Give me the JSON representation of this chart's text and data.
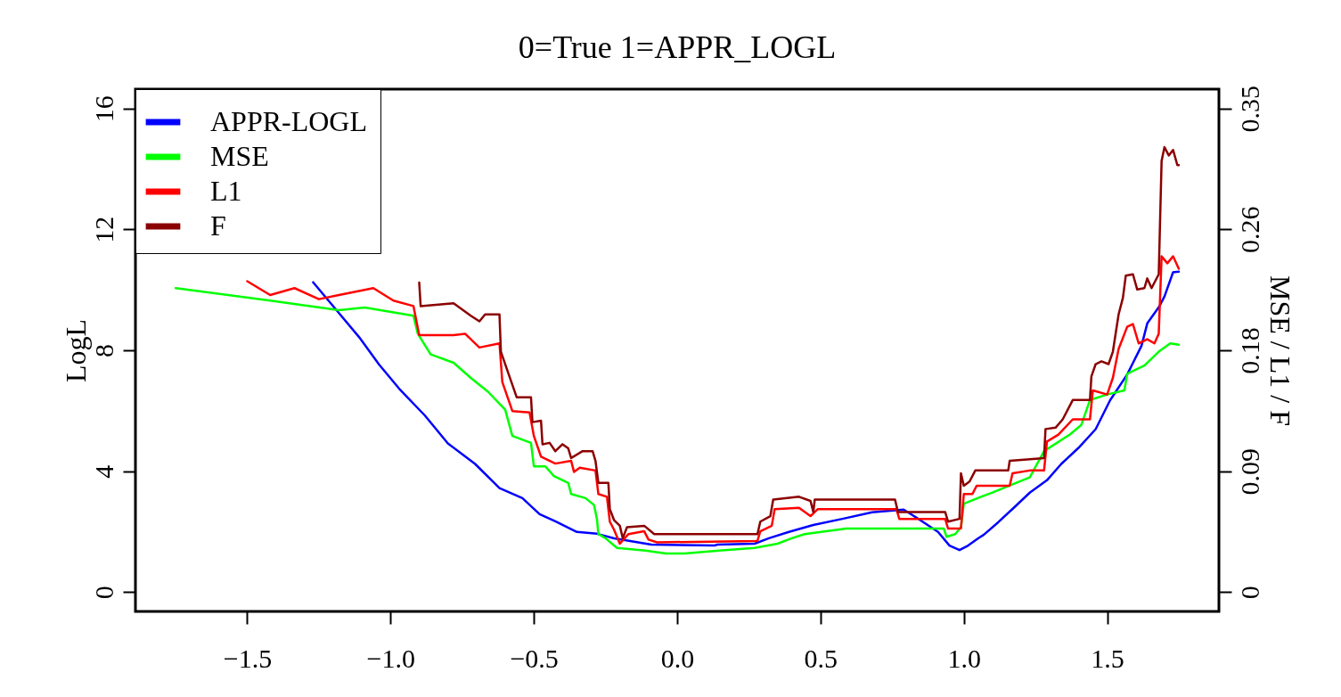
{
  "chart_data": {
    "type": "line",
    "title": "0=True   1=APPR_LOGL",
    "ylabel": "LogL",
    "y2label": "MSE / L1 / F",
    "xlim": [
      -1.89,
      1.89
    ],
    "ylim": [
      -0.64,
      16.64
    ],
    "y2lim": [
      -0.014,
      0.364
    ],
    "xticks": [
      {
        "value": -1.5,
        "label": "−1.5"
      },
      {
        "value": -1.0,
        "label": "−1.0"
      },
      {
        "value": -0.5,
        "label": "−0.5"
      },
      {
        "value": 0.0,
        "label": "0.0"
      },
      {
        "value": 0.5,
        "label": "0.5"
      },
      {
        "value": 1.0,
        "label": "1.0"
      },
      {
        "value": 1.5,
        "label": "1.5"
      }
    ],
    "yticks": [
      0,
      4,
      8,
      12,
      16
    ],
    "y2ticks": [
      0,
      {
        "value": 0.0875,
        "label": "0.09"
      },
      {
        "value": 0.175,
        "label": "0.18"
      },
      {
        "value": 0.2625,
        "label": "0.26"
      },
      0.35
    ],
    "grid": false,
    "legend": "top left",
    "series": [
      {
        "name": "APPR-LOGL",
        "color": "#0000ff",
        "x": [
          -1.27,
          -1.18,
          -1.11,
          -1.04,
          -0.97,
          -0.88,
          -0.8,
          -0.705,
          -0.62,
          -0.54,
          -0.48,
          -0.425,
          -0.35,
          -0.28,
          -0.22,
          -0.09,
          0.13,
          0.14,
          0.27,
          0.32,
          0.39,
          0.475,
          0.58,
          0.68,
          0.79,
          0.85,
          0.91,
          0.95,
          0.985,
          1.015,
          1.05,
          1.07,
          1.12,
          1.18,
          1.23,
          1.29,
          1.34,
          1.4,
          1.46,
          1.51,
          1.57,
          1.62,
          1.64,
          1.68,
          1.7,
          1.73,
          1.75
        ],
        "values": [
          10.25,
          9.23,
          8.44,
          7.53,
          6.73,
          5.84,
          4.92,
          4.24,
          3.44,
          3.11,
          2.58,
          2.34,
          1.99,
          1.93,
          1.78,
          1.57,
          1.54,
          1.57,
          1.6,
          1.78,
          1.99,
          2.22,
          2.43,
          2.64,
          2.73,
          2.37,
          1.99,
          1.54,
          1.39,
          1.54,
          1.78,
          1.9,
          2.31,
          2.84,
          3.29,
          3.7,
          4.24,
          4.77,
          5.39,
          6.34,
          7.2,
          8.15,
          8.89,
          9.42,
          9.78,
          10.58,
          10.6
        ]
      },
      {
        "name": "MSE",
        "color": "#00ff00",
        "axis": "y2",
        "x": [
          -1.75,
          -1.42,
          -1.18,
          -1.09,
          -0.92,
          -0.905,
          -0.86,
          -0.78,
          -0.72,
          -0.66,
          -0.6,
          -0.575,
          -0.51,
          -0.5,
          -0.46,
          -0.43,
          -0.38,
          -0.37,
          -0.32,
          -0.29,
          -0.28,
          -0.275,
          -0.25,
          -0.21,
          -0.11,
          -0.04,
          0.025,
          0.146,
          0.27,
          0.35,
          0.4,
          0.445,
          0.52,
          0.59,
          0.93,
          0.94,
          0.97,
          0.99,
          1.0,
          1.06,
          1.1,
          1.17,
          1.23,
          1.28,
          1.37,
          1.41,
          1.44,
          1.5,
          1.56,
          1.57,
          1.63,
          1.68,
          1.72,
          1.75
        ],
        "values": [
          0.22,
          0.211,
          0.204,
          0.206,
          0.2,
          0.187,
          0.172,
          0.166,
          0.155,
          0.145,
          0.132,
          0.113,
          0.108,
          0.091,
          0.091,
          0.084,
          0.079,
          0.071,
          0.068,
          0.063,
          0.053,
          0.042,
          0.039,
          0.032,
          0.03,
          0.028,
          0.028,
          0.03,
          0.032,
          0.035,
          0.039,
          0.042,
          0.044,
          0.046,
          0.046,
          0.04,
          0.042,
          0.047,
          0.064,
          0.069,
          0.072,
          0.078,
          0.083,
          0.102,
          0.114,
          0.121,
          0.139,
          0.143,
          0.146,
          0.158,
          0.164,
          0.174,
          0.18,
          0.179
        ]
      },
      {
        "name": "L1",
        "color": "#ff0000",
        "axis": "y2",
        "x": [
          -1.5,
          -1.42,
          -1.335,
          -1.25,
          -1.18,
          -1.06,
          -0.99,
          -0.92,
          -0.9,
          -0.78,
          -0.74,
          -0.69,
          -0.62,
          -0.61,
          -0.575,
          -0.515,
          -0.5,
          -0.475,
          -0.425,
          -0.37,
          -0.36,
          -0.34,
          -0.285,
          -0.275,
          -0.245,
          -0.235,
          -0.22,
          -0.2,
          -0.17,
          -0.115,
          -0.1,
          -0.07,
          0.28,
          0.29,
          0.33,
          0.34,
          0.425,
          0.465,
          0.49,
          0.765,
          0.775,
          0.935,
          0.945,
          0.99,
          1.0,
          1.03,
          1.045,
          1.16,
          1.17,
          1.23,
          1.28,
          1.29,
          1.33,
          1.38,
          1.44,
          1.45,
          1.5,
          1.52,
          1.54,
          1.57,
          1.59,
          1.61,
          1.64,
          1.665,
          1.68,
          1.69,
          1.71,
          1.73,
          1.75
        ],
        "values": [
          0.225,
          0.215,
          0.22,
          0.212,
          0.215,
          0.22,
          0.211,
          0.207,
          0.186,
          0.186,
          0.187,
          0.177,
          0.18,
          0.152,
          0.131,
          0.13,
          0.113,
          0.098,
          0.093,
          0.095,
          0.087,
          0.09,
          0.088,
          0.071,
          0.069,
          0.051,
          0.045,
          0.035,
          0.042,
          0.044,
          0.038,
          0.036,
          0.037,
          0.044,
          0.048,
          0.06,
          0.061,
          0.055,
          0.06,
          0.06,
          0.053,
          0.053,
          0.046,
          0.046,
          0.071,
          0.071,
          0.077,
          0.077,
          0.086,
          0.088,
          0.088,
          0.109,
          0.114,
          0.125,
          0.125,
          0.146,
          0.143,
          0.155,
          0.176,
          0.192,
          0.194,
          0.18,
          0.183,
          0.18,
          0.187,
          0.243,
          0.238,
          0.243,
          0.234
        ]
      },
      {
        "name": "F",
        "color": "#8b0000",
        "axis": "y2",
        "x": [
          -0.9,
          -0.895,
          -0.78,
          -0.72,
          -0.69,
          -0.67,
          -0.62,
          -0.615,
          -0.59,
          -0.56,
          -0.51,
          -0.505,
          -0.475,
          -0.47,
          -0.445,
          -0.425,
          -0.4,
          -0.38,
          -0.37,
          -0.33,
          -0.295,
          -0.285,
          -0.275,
          -0.24,
          -0.235,
          -0.22,
          -0.2,
          -0.19,
          -0.175,
          -0.115,
          -0.08,
          0.28,
          0.29,
          0.325,
          0.335,
          0.425,
          0.465,
          0.475,
          0.48,
          0.76,
          0.77,
          0.935,
          0.945,
          0.985,
          0.99,
          1.0,
          1.02,
          1.04,
          1.155,
          1.16,
          1.22,
          1.28,
          1.285,
          1.32,
          1.345,
          1.38,
          1.44,
          1.445,
          1.46,
          1.48,
          1.505,
          1.52,
          1.54,
          1.555,
          1.565,
          1.59,
          1.605,
          1.63,
          1.64,
          1.655,
          1.68,
          1.69,
          1.7,
          1.715,
          1.73,
          1.745,
          1.75
        ],
        "values": [
          0.224,
          0.207,
          0.209,
          0.2,
          0.196,
          0.201,
          0.201,
          0.174,
          0.159,
          0.141,
          0.141,
          0.123,
          0.124,
          0.107,
          0.108,
          0.102,
          0.107,
          0.104,
          0.097,
          0.102,
          0.102,
          0.095,
          0.079,
          0.079,
          0.06,
          0.052,
          0.048,
          0.039,
          0.047,
          0.048,
          0.042,
          0.042,
          0.051,
          0.055,
          0.067,
          0.069,
          0.066,
          0.058,
          0.067,
          0.067,
          0.058,
          0.058,
          0.051,
          0.053,
          0.086,
          0.077,
          0.08,
          0.088,
          0.088,
          0.095,
          0.096,
          0.097,
          0.118,
          0.119,
          0.125,
          0.139,
          0.139,
          0.156,
          0.165,
          0.167,
          0.165,
          0.174,
          0.201,
          0.213,
          0.229,
          0.23,
          0.219,
          0.22,
          0.227,
          0.22,
          0.23,
          0.312,
          0.322,
          0.316,
          0.32,
          0.309,
          0.309
        ]
      }
    ]
  }
}
